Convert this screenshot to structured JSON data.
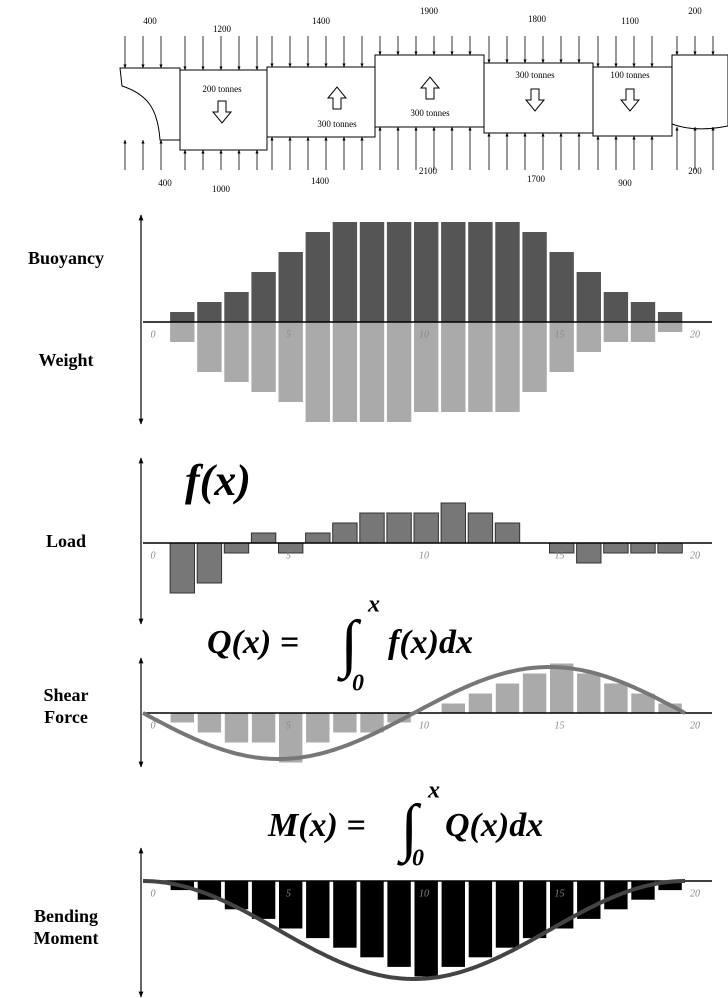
{
  "ship": {
    "top_loads": [
      400,
      1200,
      1400,
      1900,
      1800,
      1100,
      200
    ],
    "bottom_loads": [
      400,
      1000,
      1400,
      2100,
      1700,
      900,
      200
    ],
    "hold_labels": [
      "200 tonnes",
      "300 tonnes",
      "300 tonnes",
      "300 tonnes",
      "100 tonnes"
    ]
  },
  "panels": [
    {
      "labels": [
        "Buoyancy",
        "Weight"
      ],
      "xlim": [
        0,
        20
      ],
      "xticks": [
        0,
        5,
        10,
        15,
        20
      ],
      "series": [
        {
          "color": "#555555",
          "values": [
            1,
            2,
            3,
            5,
            7,
            9,
            10,
            10,
            10,
            10,
            10,
            10,
            10,
            9,
            7,
            5,
            3,
            2,
            1
          ]
        },
        {
          "color": "#aaaaaa",
          "values": [
            -2,
            -5,
            -6,
            -7,
            -8,
            -10,
            -10,
            -10,
            -10,
            -9,
            -9,
            -9,
            -9,
            -7,
            -5,
            -3,
            -2,
            -2,
            -1
          ]
        }
      ]
    },
    {
      "labels": [
        "Load"
      ],
      "xlim": [
        0,
        20
      ],
      "xticks": [
        0,
        5,
        10,
        15,
        20
      ],
      "series": [
        {
          "color": "#777777",
          "values": [
            -5,
            -4,
            -1,
            1,
            -1,
            1,
            2,
            3,
            3,
            3,
            4,
            3,
            2,
            0,
            -1,
            -2,
            -1,
            -1,
            -1
          ]
        }
      ]
    },
    {
      "labels": [
        "Shear",
        "Force"
      ],
      "xlim": [
        0,
        20
      ],
      "xticks": [
        0,
        5,
        10,
        15,
        20
      ],
      "series": [
        {
          "color": "#aaaaaa",
          "values": [
            -1,
            -2,
            -3,
            -3,
            -5,
            -3,
            -2,
            -2,
            -1,
            0,
            1,
            2,
            3,
            4,
            5,
            4,
            3,
            2,
            1
          ]
        }
      ]
    },
    {
      "labels": [
        "Bending",
        "Moment"
      ],
      "xlim": [
        0,
        20
      ],
      "xticks": [
        0,
        5,
        10,
        15,
        20
      ],
      "series": [
        {
          "color": "#000000",
          "values": [
            -1,
            -2,
            -3,
            -4,
            -5,
            -6,
            -7,
            -8,
            -9,
            -10,
            -9,
            -8,
            -7,
            -6,
            -5,
            -4,
            -3,
            -2,
            -1
          ]
        }
      ]
    }
  ],
  "formulas": {
    "load": "f(x)",
    "shear": {
      "lhs": "Q(x) =",
      "sign": "∫",
      "upper": "x",
      "lower": "0",
      "integrand": "f(x)dx"
    },
    "moment": {
      "lhs": "M(x) =",
      "sign": "∫",
      "upper": "x",
      "lower": "0",
      "integrand": "Q(x)dx"
    }
  }
}
